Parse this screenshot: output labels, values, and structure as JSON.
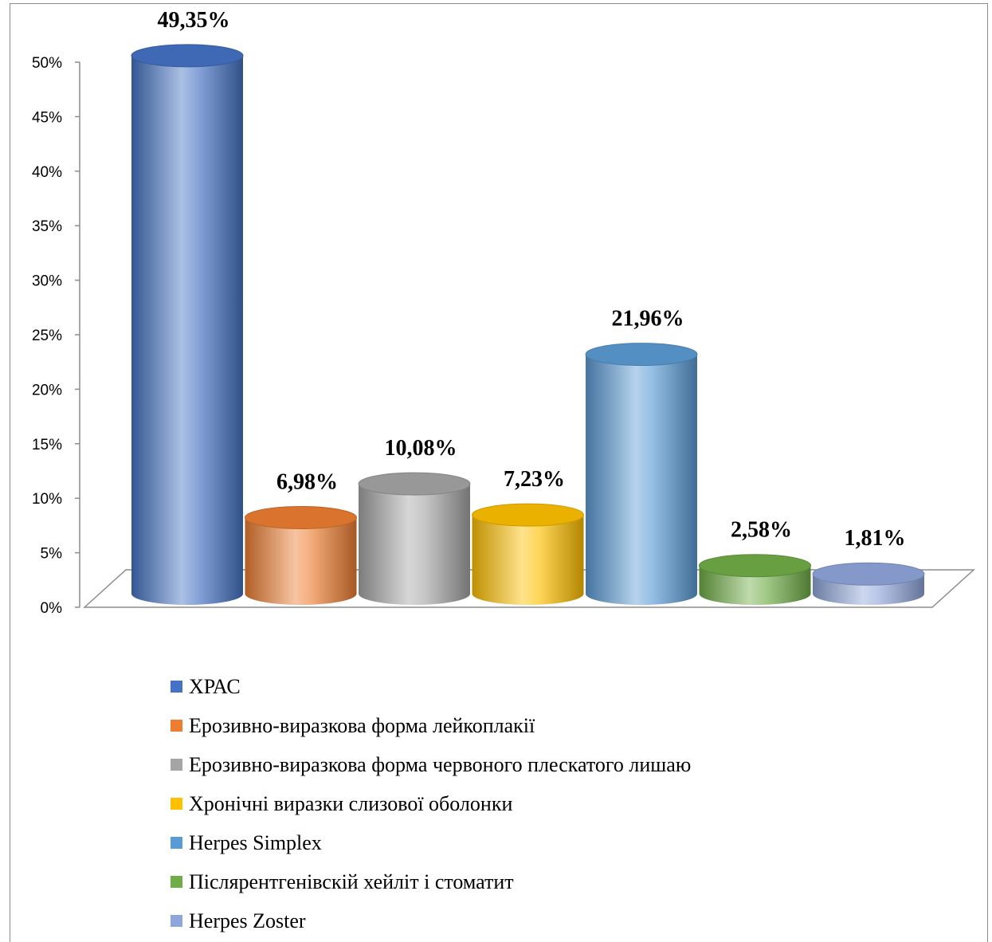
{
  "chart_data": {
    "type": "bar",
    "title": "",
    "xlabel": "",
    "ylabel": "",
    "ylim": [
      0,
      50
    ],
    "y_ticks": [
      "0%",
      "5%",
      "10%",
      "15%",
      "20%",
      "25%",
      "30%",
      "35%",
      "40%",
      "45%",
      "50%"
    ],
    "y_tick_values": [
      0,
      5,
      10,
      15,
      20,
      25,
      30,
      35,
      40,
      45,
      50
    ],
    "grid": false,
    "legend_position": "bottom",
    "style": "3d-cylinder",
    "categories": [
      "ХРАС",
      "Ерозивно-виразкова форма лейкоплакії",
      "Ерозивно-виразкова форма червоного плескатого лишаю",
      "Хронічні виразки слизової оболонки",
      "Herpes Simplex",
      "Післярентгенівскій хейліт і стоматит",
      "Herpes Zoster"
    ],
    "values": [
      49.35,
      6.98,
      10.08,
      7.23,
      21.96,
      2.58,
      1.81
    ],
    "value_labels": [
      "49,35%",
      "6,98%",
      "10,08%",
      "7,23%",
      "21,96%",
      "2,58%",
      "1,81%"
    ],
    "colors": [
      "#4472C4",
      "#ED7D31",
      "#A5A5A5",
      "#FFC000",
      "#5B9BD5",
      "#70AD47",
      "#8FA6DA"
    ]
  }
}
